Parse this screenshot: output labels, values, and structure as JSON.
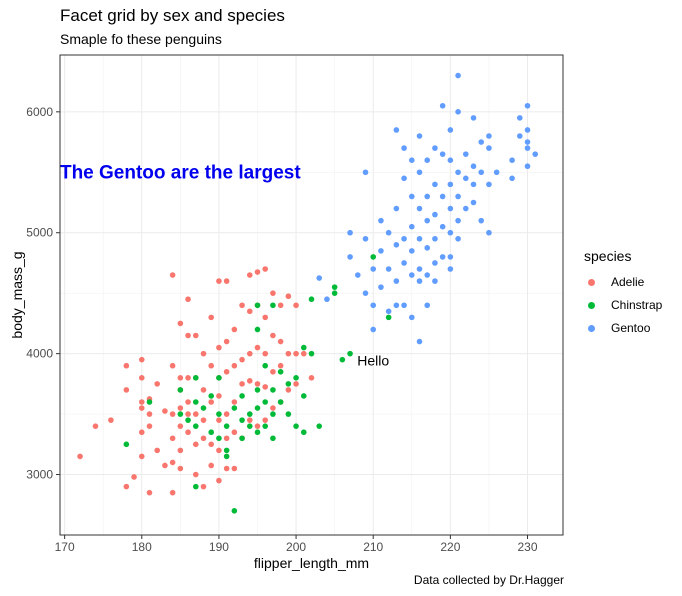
{
  "title": "Facet grid by sex and species",
  "subtitle": "Smaple fo these penguins",
  "caption": "Data collected by Dr.Hagger",
  "legend": {
    "title": "species",
    "placement": "right",
    "items": [
      {
        "label": "Adelie",
        "color": "#F8766D"
      },
      {
        "label": "Chinstrap",
        "color": "#00BA38"
      },
      {
        "label": "Gentoo",
        "color": "#619CFF"
      }
    ]
  },
  "chart_data": {
    "type": "scatter",
    "xlabel": "flipper_length_mm",
    "ylabel": "body_mass_g",
    "xlim": [
      169.4,
      234.6
    ],
    "ylim": [
      2500,
      6470
    ],
    "xticks": [
      170,
      180,
      190,
      200,
      210,
      220,
      230
    ],
    "yticks": [
      3000,
      4000,
      5000,
      6000
    ],
    "grid": true,
    "annotations": [
      {
        "text": "The Gentoo are the largest",
        "x": 185,
        "y": 5500,
        "color": "#0000EE",
        "bold": true
      },
      {
        "text": "Hello",
        "x": 210,
        "y": 3950,
        "color": "#000000",
        "bold": false
      }
    ],
    "series": [
      {
        "name": "Adelie",
        "color": "#F8766D",
        "points": [
          [
            172,
            3150
          ],
          [
            174,
            3400
          ],
          [
            176,
            3450
          ],
          [
            178,
            3900
          ],
          [
            178,
            3700
          ],
          [
            178,
            2900
          ],
          [
            179,
            2980
          ],
          [
            180,
            3950
          ],
          [
            180,
            3800
          ],
          [
            180,
            3600
          ],
          [
            180,
            3550
          ],
          [
            180,
            3350
          ],
          [
            180,
            3150
          ],
          [
            181,
            3625
          ],
          [
            181,
            3500
          ],
          [
            181,
            3400
          ],
          [
            181,
            2850
          ],
          [
            182,
            3750
          ],
          [
            182,
            3200
          ],
          [
            183,
            3525
          ],
          [
            183,
            3075
          ],
          [
            184,
            4650
          ],
          [
            184,
            3900
          ],
          [
            184,
            3500
          ],
          [
            184,
            3300
          ],
          [
            184,
            3100
          ],
          [
            184,
            2850
          ],
          [
            185,
            4250
          ],
          [
            185,
            3800
          ],
          [
            185,
            3700
          ],
          [
            185,
            3550
          ],
          [
            185,
            3400
          ],
          [
            185,
            3200
          ],
          [
            185,
            3050
          ],
          [
            186,
            4450
          ],
          [
            186,
            4150
          ],
          [
            186,
            3800
          ],
          [
            186,
            3600
          ],
          [
            186,
            3500
          ],
          [
            186,
            3350
          ],
          [
            187,
            4150
          ],
          [
            187,
            3800
          ],
          [
            187,
            3500
          ],
          [
            187,
            3250
          ],
          [
            187,
            3000
          ],
          [
            188,
            4000
          ],
          [
            188,
            3700
          ],
          [
            188,
            3450
          ],
          [
            188,
            3300
          ],
          [
            188,
            2900
          ],
          [
            189,
            4300
          ],
          [
            189,
            3900
          ],
          [
            189,
            3600
          ],
          [
            189,
            3250
          ],
          [
            189,
            3075
          ],
          [
            190,
            4600
          ],
          [
            190,
            4050
          ],
          [
            190,
            3800
          ],
          [
            190,
            3650
          ],
          [
            190,
            3450
          ],
          [
            190,
            3200
          ],
          [
            190,
            2950
          ],
          [
            191,
            4600
          ],
          [
            191,
            4100
          ],
          [
            191,
            3850
          ],
          [
            191,
            3500
          ],
          [
            191,
            3300
          ],
          [
            191,
            3050
          ],
          [
            192,
            4200
          ],
          [
            192,
            3900
          ],
          [
            192,
            3600
          ],
          [
            192,
            3350
          ],
          [
            192,
            3050
          ],
          [
            193,
            4400
          ],
          [
            193,
            3950
          ],
          [
            193,
            3750
          ],
          [
            193,
            3300
          ],
          [
            194,
            4650
          ],
          [
            194,
            4350
          ],
          [
            194,
            4000
          ],
          [
            194,
            3775
          ],
          [
            194,
            3450
          ],
          [
            195,
            4675
          ],
          [
            195,
            4400
          ],
          [
            195,
            4050
          ],
          [
            195,
            3750
          ],
          [
            195,
            3400
          ],
          [
            196,
            4700
          ],
          [
            196,
            4300
          ],
          [
            196,
            4000
          ],
          [
            196,
            3725
          ],
          [
            196,
            3450
          ],
          [
            197,
            4500
          ],
          [
            197,
            4150
          ],
          [
            197,
            3850
          ],
          [
            197,
            3550
          ],
          [
            198,
            4400
          ],
          [
            198,
            4100
          ],
          [
            198,
            3900
          ],
          [
            198,
            3600
          ],
          [
            199,
            4475
          ],
          [
            199,
            4000
          ],
          [
            199,
            3700
          ],
          [
            200,
            4400
          ],
          [
            200,
            4000
          ],
          [
            200,
            3750
          ],
          [
            201,
            4000
          ],
          [
            202,
            3800
          ]
        ]
      },
      {
        "name": "Chinstrap",
        "color": "#00BA38",
        "points": [
          [
            178,
            3250
          ],
          [
            181,
            3600
          ],
          [
            185,
            3700
          ],
          [
            185,
            3500
          ],
          [
            186,
            3450
          ],
          [
            187,
            3800
          ],
          [
            187,
            3600
          ],
          [
            187,
            3400
          ],
          [
            187,
            2900
          ],
          [
            188,
            3550
          ],
          [
            189,
            3650
          ],
          [
            189,
            3350
          ],
          [
            190,
            3800
          ],
          [
            190,
            3500
          ],
          [
            190,
            3300
          ],
          [
            191,
            3400
          ],
          [
            191,
            3200
          ],
          [
            191,
            3150
          ],
          [
            192,
            3550
          ],
          [
            192,
            2700
          ],
          [
            193,
            3650
          ],
          [
            193,
            3450
          ],
          [
            193,
            3300
          ],
          [
            194,
            3500
          ],
          [
            194,
            3400
          ],
          [
            195,
            4400
          ],
          [
            195,
            4200
          ],
          [
            195,
            3700
          ],
          [
            195,
            3550
          ],
          [
            195,
            3350
          ],
          [
            196,
            3900
          ],
          [
            196,
            3600
          ],
          [
            196,
            3400
          ],
          [
            197,
            4400
          ],
          [
            197,
            3700
          ],
          [
            197,
            3500
          ],
          [
            197,
            3300
          ],
          [
            198,
            3850
          ],
          [
            198,
            3600
          ],
          [
            199,
            3750
          ],
          [
            199,
            3500
          ],
          [
            200,
            3800
          ],
          [
            200,
            3400
          ],
          [
            201,
            4050
          ],
          [
            201,
            3650
          ],
          [
            201,
            3350
          ],
          [
            202,
            4450
          ],
          [
            202,
            4000
          ],
          [
            203,
            3400
          ],
          [
            205,
            4550
          ],
          [
            205,
            4500
          ],
          [
            206,
            3950
          ],
          [
            207,
            4000
          ],
          [
            210,
            4800
          ],
          [
            212,
            4300
          ]
        ]
      },
      {
        "name": "Gentoo",
        "color": "#619CFF",
        "points": [
          [
            203,
            4625
          ],
          [
            204,
            4450
          ],
          [
            207,
            5000
          ],
          [
            207,
            4800
          ],
          [
            208,
            4650
          ],
          [
            209,
            5500
          ],
          [
            209,
            4950
          ],
          [
            209,
            4500
          ],
          [
            210,
            4700
          ],
          [
            210,
            4400
          ],
          [
            210,
            4200
          ],
          [
            211,
            5100
          ],
          [
            211,
            4850
          ],
          [
            211,
            4550
          ],
          [
            212,
            5000
          ],
          [
            212,
            4700
          ],
          [
            212,
            4350
          ],
          [
            213,
            5850
          ],
          [
            213,
            5200
          ],
          [
            213,
            4900
          ],
          [
            213,
            4600
          ],
          [
            213,
            4400
          ],
          [
            214,
            5700
          ],
          [
            214,
            5450
          ],
          [
            214,
            4950
          ],
          [
            214,
            4750
          ],
          [
            214,
            4400
          ],
          [
            215,
            5600
          ],
          [
            215,
            5300
          ],
          [
            215,
            5050
          ],
          [
            215,
            4850
          ],
          [
            215,
            4650
          ],
          [
            215,
            4300
          ],
          [
            216,
            5800
          ],
          [
            216,
            5500
          ],
          [
            216,
            5200
          ],
          [
            216,
            4950
          ],
          [
            216,
            4700
          ],
          [
            216,
            4600
          ],
          [
            216,
            4100
          ],
          [
            217,
            5600
          ],
          [
            217,
            5300
          ],
          [
            217,
            5100
          ],
          [
            217,
            4875
          ],
          [
            217,
            4650
          ],
          [
            217,
            4400
          ],
          [
            218,
            5700
          ],
          [
            218,
            5400
          ],
          [
            218,
            5150
          ],
          [
            218,
            4950
          ],
          [
            218,
            4750
          ],
          [
            218,
            4600
          ],
          [
            219,
            6050
          ],
          [
            219,
            5650
          ],
          [
            219,
            5300
          ],
          [
            219,
            5050
          ],
          [
            219,
            4800
          ],
          [
            220,
            5850
          ],
          [
            220,
            5600
          ],
          [
            220,
            5400
          ],
          [
            220,
            5200
          ],
          [
            220,
            5000
          ],
          [
            220,
            4800
          ],
          [
            220,
            4700
          ],
          [
            221,
            6300
          ],
          [
            221,
            6000
          ],
          [
            221,
            5500
          ],
          [
            221,
            5300
          ],
          [
            221,
            5100
          ],
          [
            221,
            4950
          ],
          [
            222,
            5650
          ],
          [
            222,
            5450
          ],
          [
            222,
            5200
          ],
          [
            223,
            5950
          ],
          [
            223,
            5550
          ],
          [
            223,
            5400
          ],
          [
            223,
            5250
          ],
          [
            224,
            5750
          ],
          [
            224,
            5500
          ],
          [
            224,
            5100
          ],
          [
            225,
            5800
          ],
          [
            225,
            5700
          ],
          [
            225,
            5400
          ],
          [
            225,
            5000
          ],
          [
            226,
            5500
          ],
          [
            228,
            5600
          ],
          [
            228,
            5450
          ],
          [
            229,
            5950
          ],
          [
            229,
            5800
          ],
          [
            230,
            6050
          ],
          [
            230,
            5850
          ],
          [
            230,
            5750
          ],
          [
            230,
            5700
          ],
          [
            230,
            5550
          ],
          [
            231,
            5650
          ]
        ]
      }
    ]
  }
}
